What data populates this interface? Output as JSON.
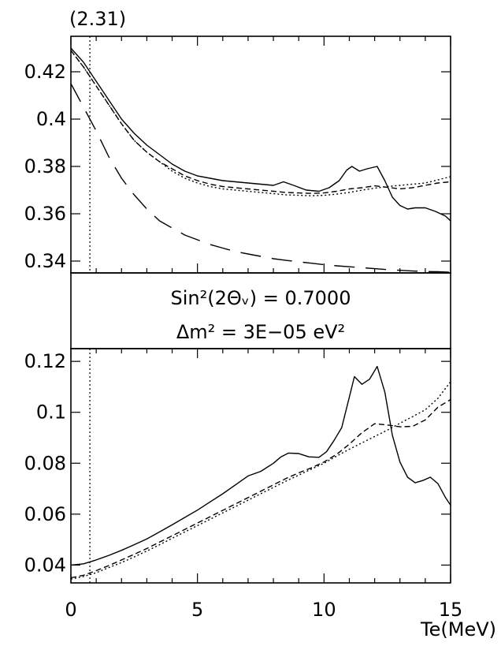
{
  "figure_label": "(2.31)",
  "params": {
    "line1": "Sin²(2Θᵥ) = 0.7000",
    "line2": "Δm² = 3E−05 eV²"
  },
  "chart_data": [
    {
      "type": "line",
      "panel": "top",
      "xlim": [
        0,
        15
      ],
      "ylim": [
        0.335,
        0.435
      ],
      "yticks": [
        0.34,
        0.36,
        0.38,
        0.4,
        0.42
      ],
      "ytick_labels": [
        "0.34",
        "0.36",
        "0.38",
        "0.4",
        "0.42"
      ],
      "vline_x": 0.75,
      "series": [
        {
          "style": "solid",
          "x": [
            0,
            0.5,
            1,
            1.5,
            2,
            2.5,
            3,
            3.5,
            4,
            4.5,
            5,
            5.5,
            6,
            6.5,
            7,
            7.5,
            8,
            8.4,
            8.8,
            9.3,
            9.8,
            10.2,
            10.6,
            10.9,
            11.1,
            11.4,
            11.7,
            12.1,
            12.4,
            12.7,
            13,
            13.3,
            13.6,
            14,
            14.4,
            14.8,
            15
          ],
          "y": [
            0.43,
            0.424,
            0.416,
            0.408,
            0.4,
            0.394,
            0.389,
            0.385,
            0.381,
            0.378,
            0.376,
            0.375,
            0.374,
            0.3735,
            0.373,
            0.3725,
            0.372,
            0.3735,
            0.372,
            0.37,
            0.3695,
            0.371,
            0.374,
            0.3785,
            0.38,
            0.378,
            0.379,
            0.38,
            0.374,
            0.367,
            0.3635,
            0.362,
            0.3625,
            0.3625,
            0.361,
            0.359,
            0.357
          ]
        },
        {
          "style": "dashed",
          "x": [
            0,
            0.5,
            1,
            1.5,
            2,
            2.5,
            3,
            3.5,
            4,
            4.5,
            5,
            5.5,
            6,
            6.5,
            7,
            7.5,
            8,
            8.5,
            9,
            9.5,
            10,
            10.5,
            11,
            11.5,
            12,
            12.5,
            13,
            13.5,
            14,
            14.5,
            15
          ],
          "y": [
            0.429,
            0.422,
            0.414,
            0.406,
            0.398,
            0.391,
            0.386,
            0.382,
            0.379,
            0.376,
            0.374,
            0.3725,
            0.3715,
            0.371,
            0.3705,
            0.37,
            0.3695,
            0.369,
            0.3688,
            0.3686,
            0.3688,
            0.3695,
            0.3705,
            0.371,
            0.3718,
            0.3712,
            0.3705,
            0.371,
            0.372,
            0.373,
            0.3735
          ]
        },
        {
          "style": "dotted",
          "x": [
            0,
            0.5,
            1,
            1.5,
            2,
            2.5,
            3,
            3.5,
            4,
            4.5,
            5,
            5.5,
            6,
            6.5,
            7,
            7.5,
            8,
            8.5,
            9,
            9.5,
            10,
            10.5,
            11,
            11.5,
            12,
            12.5,
            13,
            13.5,
            14,
            14.5,
            15
          ],
          "y": [
            0.429,
            0.422,
            0.414,
            0.406,
            0.398,
            0.391,
            0.386,
            0.382,
            0.378,
            0.375,
            0.373,
            0.3715,
            0.3705,
            0.37,
            0.3695,
            0.369,
            0.3685,
            0.368,
            0.3678,
            0.3676,
            0.3678,
            0.3683,
            0.369,
            0.37,
            0.3708,
            0.3715,
            0.372,
            0.3725,
            0.373,
            0.3743,
            0.3757
          ]
        },
        {
          "style": "longdash",
          "x": [
            0,
            0.5,
            1,
            1.5,
            2,
            2.5,
            3,
            3.5,
            4,
            4.5,
            5,
            5.5,
            6,
            6.5,
            7,
            7.5,
            8,
            8.5,
            9,
            9.5,
            10,
            10.5,
            11,
            11.5,
            12,
            12.5,
            13,
            13.5,
            14,
            14.5,
            15
          ],
          "y": [
            0.415,
            0.405,
            0.395,
            0.384,
            0.375,
            0.368,
            0.362,
            0.357,
            0.354,
            0.351,
            0.349,
            0.347,
            0.3455,
            0.344,
            0.343,
            0.342,
            0.341,
            0.3403,
            0.3397,
            0.3391,
            0.3385,
            0.338,
            0.3376,
            0.3372,
            0.3368,
            0.3364,
            0.3361,
            0.3358,
            0.3356,
            0.3355,
            0.3353
          ]
        }
      ]
    },
    {
      "type": "line",
      "panel": "bottom",
      "xlim": [
        0,
        15
      ],
      "ylim": [
        0.033,
        0.125
      ],
      "yticks": [
        0.04,
        0.06,
        0.08,
        0.1,
        0.12
      ],
      "ytick_labels": [
        "0.04",
        "0.06",
        "0.08",
        "0.1",
        "0.12"
      ],
      "xticks": [
        0,
        5,
        10,
        15
      ],
      "xtick_labels": [
        "0",
        "5",
        "10",
        "15"
      ],
      "xlabel": "Te(MeV)",
      "vline_x": 0.75,
      "series": [
        {
          "style": "solid",
          "x": [
            0,
            0.5,
            1,
            1.5,
            2,
            2.5,
            3,
            3.5,
            4,
            4.5,
            5,
            5.5,
            6,
            6.5,
            7,
            7.5,
            8,
            8.3,
            8.6,
            9,
            9.4,
            9.8,
            10.1,
            10.4,
            10.7,
            11,
            11.2,
            11.5,
            11.8,
            12.1,
            12.4,
            12.7,
            13,
            13.3,
            13.6,
            13.9,
            14.2,
            14.5,
            14.8,
            15
          ],
          "y": [
            0.04,
            0.0405,
            0.042,
            0.0438,
            0.0458,
            0.048,
            0.0503,
            0.053,
            0.0558,
            0.0587,
            0.0616,
            0.0648,
            0.068,
            0.0715,
            0.075,
            0.0768,
            0.08,
            0.0825,
            0.084,
            0.0838,
            0.0825,
            0.0823,
            0.0845,
            0.089,
            0.094,
            0.106,
            0.114,
            0.111,
            0.113,
            0.118,
            0.108,
            0.091,
            0.0805,
            0.0745,
            0.0723,
            0.0732,
            0.0745,
            0.072,
            0.0665,
            0.0635
          ]
        },
        {
          "style": "dashed",
          "x": [
            0,
            0.5,
            1,
            1.5,
            2,
            2.5,
            3,
            3.5,
            4,
            4.5,
            5,
            5.5,
            6,
            6.5,
            7,
            7.5,
            8,
            8.5,
            9,
            9.5,
            10,
            10.5,
            11,
            11.5,
            12,
            12.5,
            13,
            13.5,
            14,
            14.5,
            15
          ],
          "y": [
            0.035,
            0.036,
            0.0378,
            0.0398,
            0.042,
            0.0442,
            0.0465,
            0.049,
            0.0515,
            0.054,
            0.0565,
            0.059,
            0.0615,
            0.064,
            0.0665,
            0.069,
            0.0715,
            0.074,
            0.0762,
            0.0782,
            0.0805,
            0.0835,
            0.0875,
            0.092,
            0.0955,
            0.095,
            0.0943,
            0.0945,
            0.097,
            0.102,
            0.105
          ]
        },
        {
          "style": "dotted",
          "x": [
            0,
            0.5,
            1,
            1.5,
            2,
            2.5,
            3,
            3.5,
            4,
            4.5,
            5,
            5.5,
            6,
            6.5,
            7,
            7.5,
            8,
            8.5,
            9,
            9.5,
            10,
            10.5,
            11,
            11.5,
            12,
            12.5,
            13,
            13.5,
            14,
            14.5,
            15
          ],
          "y": [
            0.0345,
            0.0355,
            0.037,
            0.039,
            0.041,
            0.0432,
            0.0455,
            0.048,
            0.0505,
            0.053,
            0.0555,
            0.058,
            0.0605,
            0.063,
            0.0655,
            0.068,
            0.0705,
            0.073,
            0.0753,
            0.0777,
            0.08,
            0.0828,
            0.0855,
            0.088,
            0.0905,
            0.093,
            0.0957,
            0.0983,
            0.101,
            0.1055,
            0.112
          ]
        }
      ]
    }
  ]
}
